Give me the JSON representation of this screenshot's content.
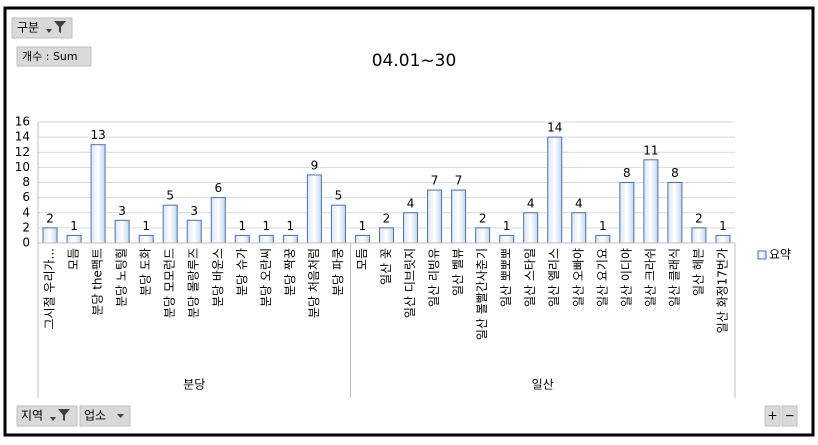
{
  "chart_data": {
    "type": "bar",
    "title": "04.01~30",
    "groups": [
      {
        "label": "분당",
        "categories": [
          "그시절 우리가...",
          "모듬",
          "분당 the팩트",
          "분당 노팅힐",
          "분당 도화",
          "분당 모모런드",
          "분당 몰랑루즈",
          "분당 바운스",
          "분당 슈가",
          "분당 오란씨",
          "분당 짝꿍",
          "분당 처음처럼",
          "분당 파쿵"
        ]
      },
      {
        "label": "일산",
        "categories": [
          "모듬",
          "일산 꽃",
          "일산 디브릿지",
          "일산 리빙유",
          "일산 벨뷰",
          "일산 볼빨간사춘기",
          "일산 뽀뽀뽀",
          "일산 스타일",
          "일산 엘리스",
          "일산 오빠야",
          "일산 요기요",
          "일산 이디야",
          "일산 크라쉬",
          "일산 클래식",
          "일산 헤븐",
          "일산 화정17번가"
        ]
      }
    ],
    "series": [
      {
        "name": "요약",
        "color": "#4472c4",
        "values": [
          2,
          1,
          13,
          3,
          1,
          5,
          3,
          6,
          1,
          1,
          1,
          9,
          5,
          1,
          2,
          4,
          7,
          7,
          2,
          1,
          4,
          14,
          4,
          1,
          8,
          11,
          8,
          2,
          1
        ]
      }
    ],
    "ylim": [
      0,
      16
    ],
    "yticks": [
      0,
      2,
      4,
      6,
      8,
      10,
      12,
      14,
      16
    ],
    "grid": true,
    "legend": "right"
  },
  "controls": {
    "filter_field": "구분",
    "value_field": "개수 : Sum",
    "axis_fields": [
      "지역",
      "업소"
    ],
    "expand": "+",
    "collapse": "−"
  }
}
